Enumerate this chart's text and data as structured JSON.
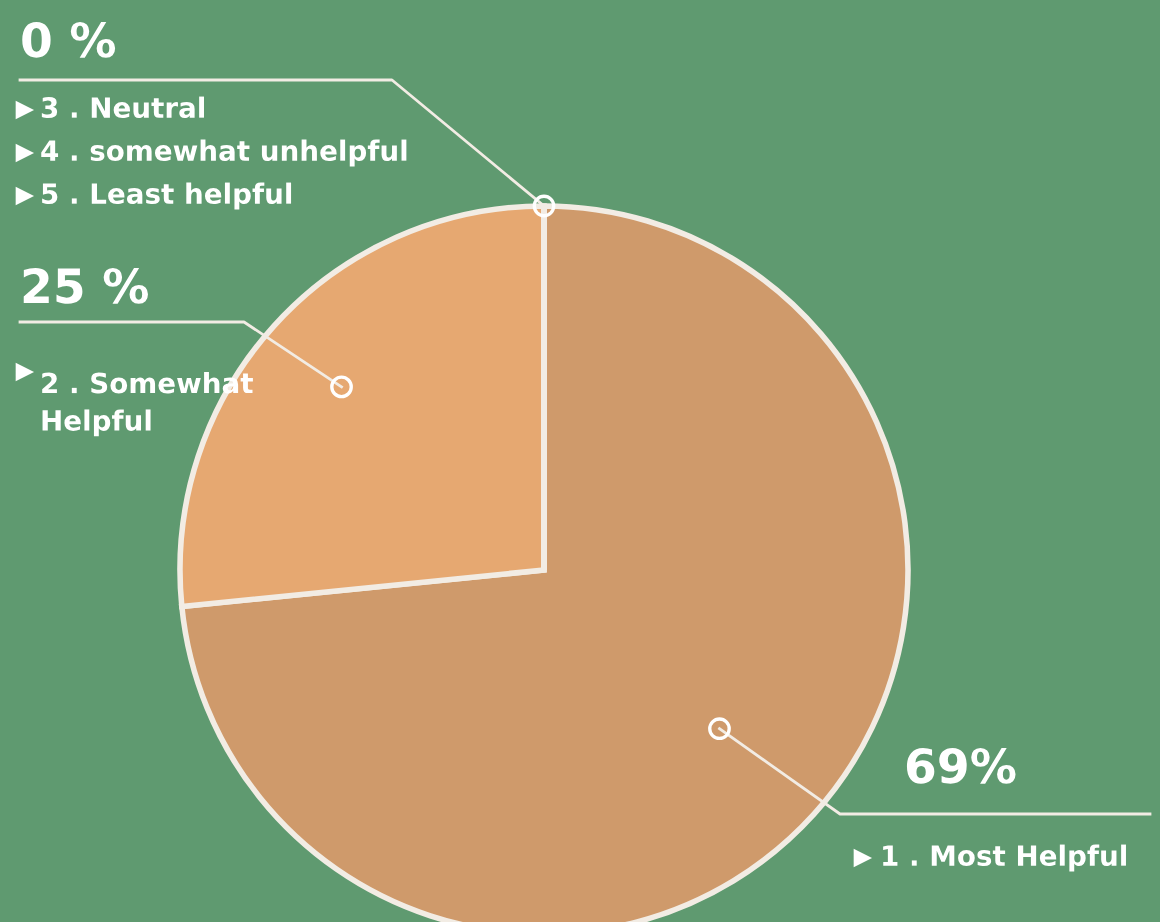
{
  "chart_data": {
    "type": "pie",
    "categories": [
      "1 . Most Helpful",
      "2 . Somewhat Helpful",
      "3 . Neutral",
      "4 . somewhat unhelpful",
      "5 . Least helpful"
    ],
    "values": [
      69,
      25,
      0,
      0,
      0
    ],
    "colors": [
      "#cf9a6b",
      "#e6a871",
      "#e6a871",
      "#e6a871",
      "#e6a871"
    ],
    "value_labels": [
      "69%",
      "25 %",
      "0 %",
      null,
      null
    ]
  }
}
